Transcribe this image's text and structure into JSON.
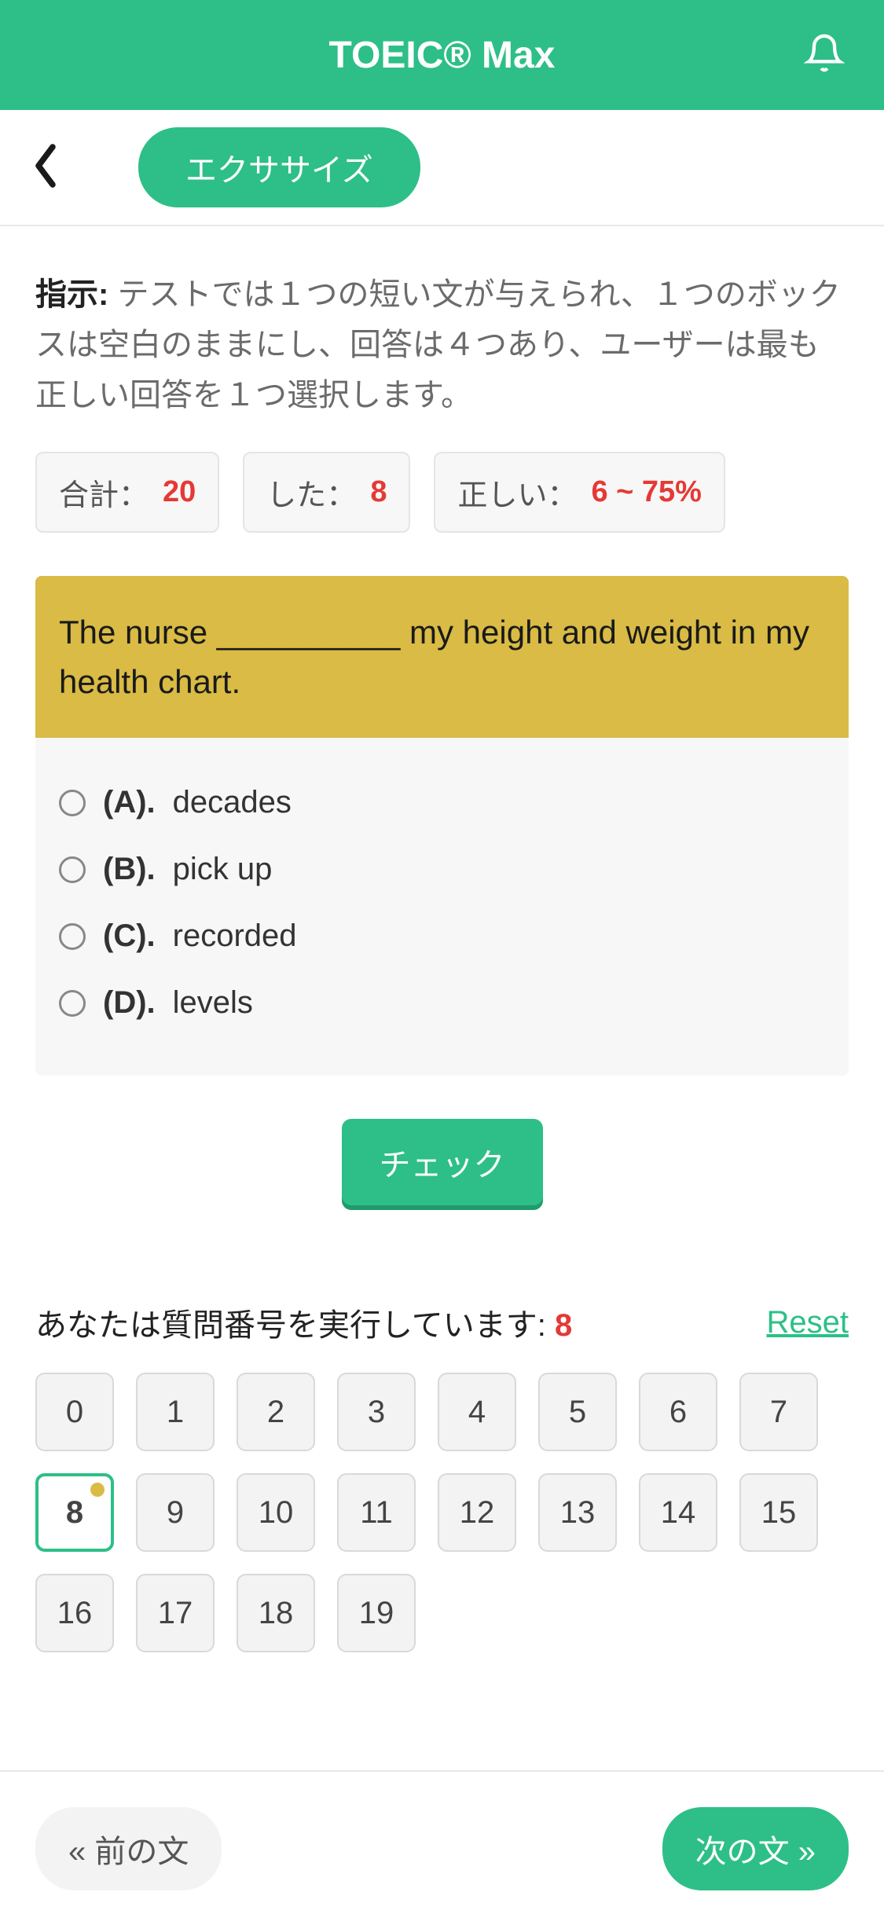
{
  "header": {
    "title": "TOEIC® Max"
  },
  "subheader": {
    "exercise_label": "エクササイズ"
  },
  "instructions": {
    "label": "指示:",
    "text": " テストでは１つの短い文が与えられ、１つのボックスは空白のままにし、回答は４つあり、ユーザーは最も正しい回答を１つ選択します。"
  },
  "stats": {
    "total_label": "合計：",
    "total_value": "20",
    "done_label": "した：",
    "done_value": "8",
    "correct_label": "正しい：",
    "correct_value": "6 ~ 75%"
  },
  "question": {
    "text": "The nurse __________ my height and weight in my health chart.",
    "choices": [
      {
        "letter": "(A).",
        "text": "decades"
      },
      {
        "letter": "(B).",
        "text": "pick up"
      },
      {
        "letter": "(C).",
        "text": "recorded"
      },
      {
        "letter": "(D).",
        "text": "levels"
      }
    ]
  },
  "buttons": {
    "check": "チェック",
    "reset": "Reset",
    "prev": "« 前の文",
    "next": "次の文 »"
  },
  "nav": {
    "label_prefix": "あなたは質問番号を実行しています: ",
    "current": "8",
    "numbers": [
      "0",
      "1",
      "2",
      "3",
      "4",
      "5",
      "6",
      "7",
      "8",
      "9",
      "10",
      "11",
      "12",
      "13",
      "14",
      "15",
      "16",
      "17",
      "18",
      "19"
    ],
    "active_index": 8
  },
  "colors": {
    "primary": "#2dbf87",
    "accent_yellow": "#d9bb45",
    "danger": "#e53935"
  }
}
